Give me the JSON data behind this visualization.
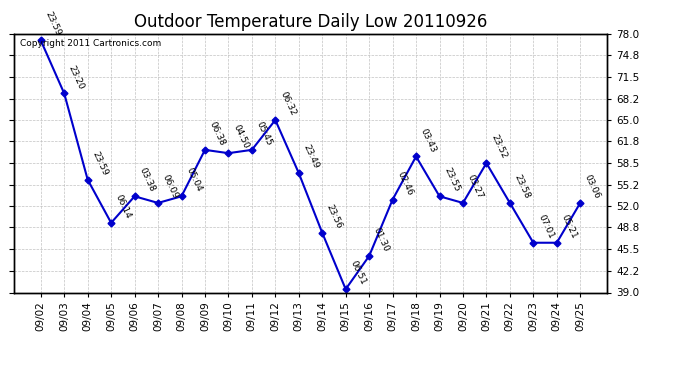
{
  "title": "Outdoor Temperature Daily Low 20110926",
  "copyright_text": "Copyright 2011 Cartronics.com",
  "dates": [
    "09/02",
    "09/03",
    "09/04",
    "09/05",
    "09/06",
    "09/07",
    "09/08",
    "09/09",
    "09/10",
    "09/11",
    "09/12",
    "09/13",
    "09/14",
    "09/15",
    "09/16",
    "09/17",
    "09/18",
    "09/19",
    "09/20",
    "09/21",
    "09/22",
    "09/23",
    "09/24",
    "09/25"
  ],
  "values": [
    77.0,
    69.0,
    56.0,
    49.5,
    53.5,
    52.5,
    53.5,
    60.5,
    60.0,
    60.5,
    65.0,
    57.0,
    48.0,
    39.5,
    44.5,
    53.0,
    59.5,
    53.5,
    52.5,
    58.5,
    52.5,
    46.5,
    46.5,
    52.5
  ],
  "annotations": [
    "23:59",
    "23:20",
    "23:59",
    "06:14",
    "03:38",
    "06:09",
    "05:04",
    "06:38",
    "04:50",
    "05:45",
    "06:32",
    "23:49",
    "23:56",
    "06:51",
    "01:30",
    "02:46",
    "03:43",
    "23:55",
    "03:27",
    "23:52",
    "23:58",
    "07:01",
    "05:21",
    "03:06"
  ],
  "ylim": [
    39.0,
    78.0
  ],
  "yticks": [
    39.0,
    42.2,
    45.5,
    48.8,
    52.0,
    55.2,
    58.5,
    61.8,
    65.0,
    68.2,
    71.5,
    74.8,
    78.0
  ],
  "line_color": "#0000cc",
  "marker_color": "#0000cc",
  "bg_color": "#ffffff",
  "grid_color": "#bbbbbb",
  "title_fontsize": 12,
  "annotation_fontsize": 6.5,
  "tick_fontsize": 7.5
}
